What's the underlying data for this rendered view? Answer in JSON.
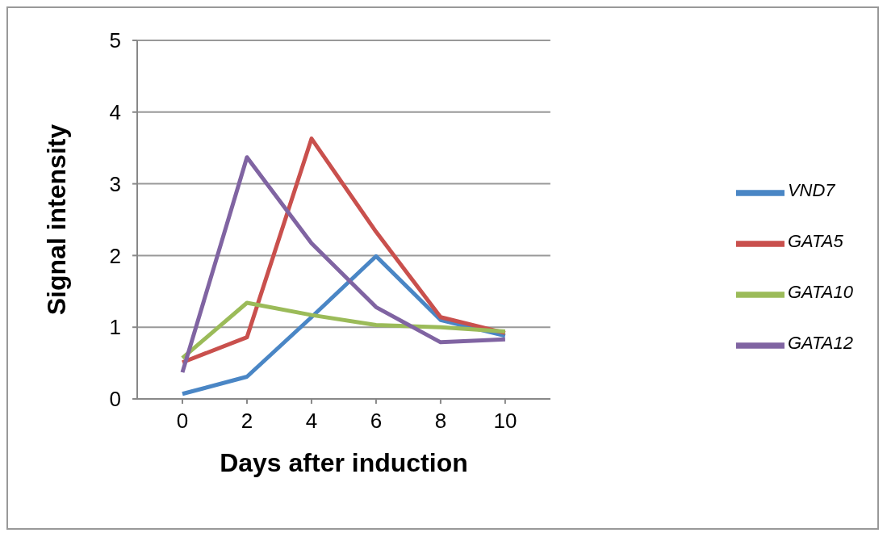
{
  "chart_data": {
    "type": "line",
    "xlabel": "Days after induction",
    "ylabel": "Signal intensity",
    "categories": [
      "0",
      "2",
      "4",
      "6",
      "8",
      "10"
    ],
    "series": [
      {
        "name": "VND7",
        "color": "#4a86c5",
        "values": [
          0.07,
          0.31,
          1.14,
          1.99,
          1.1,
          0.88
        ]
      },
      {
        "name": "GATA5",
        "color": "#c9504d",
        "values": [
          0.51,
          0.86,
          3.63,
          2.33,
          1.14,
          0.92
        ]
      },
      {
        "name": "GATA10",
        "color": "#9bbb59",
        "values": [
          0.57,
          1.34,
          1.17,
          1.03,
          1.0,
          0.94
        ]
      },
      {
        "name": "GATA12",
        "color": "#8064a2",
        "values": [
          0.37,
          3.37,
          2.17,
          1.28,
          0.79,
          0.83
        ]
      }
    ],
    "ylim": [
      0,
      5
    ],
    "yticks": [
      0,
      1,
      2,
      3,
      4,
      5
    ],
    "grid": "y",
    "legend": "right",
    "marker": "none",
    "line_style": "solid"
  }
}
